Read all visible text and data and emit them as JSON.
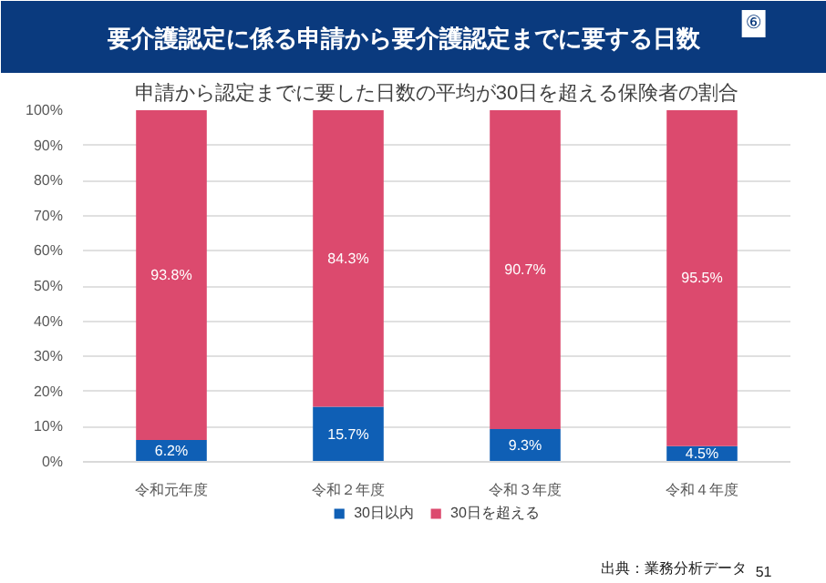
{
  "chart_data": {
    "type": "bar",
    "stacked": true,
    "title": "要介護認定に係る申請から要介護認定までに要する日数",
    "subtitle": "申請から認定までに要した日数の平均が30日を超える保険者の割合",
    "categories": [
      "令和元年度",
      "令和２年度",
      "令和３年度",
      "令和４年度"
    ],
    "series": [
      {
        "name": "30日以内",
        "color": "#0f5fb5",
        "values": [
          6.2,
          15.7,
          9.3,
          4.5
        ],
        "value_labels": [
          "6.2%",
          "15.7%",
          "9.3%",
          "4.5%"
        ]
      },
      {
        "name": "30日を超える",
        "color": "#dc4a6e",
        "values": [
          93.8,
          84.3,
          90.7,
          95.5
        ],
        "value_labels": [
          "93.8%",
          "84.3%",
          "90.7%",
          "95.5%"
        ]
      }
    ],
    "ylim": [
      0,
      100
    ],
    "yticks": [
      {
        "value": 0,
        "label": "0%"
      },
      {
        "value": 10,
        "label": "10%"
      },
      {
        "value": 20,
        "label": "20%"
      },
      {
        "value": 30,
        "label": "30%"
      },
      {
        "value": 40,
        "label": "40%"
      },
      {
        "value": 50,
        "label": "50%"
      },
      {
        "value": 60,
        "label": "60%"
      },
      {
        "value": 70,
        "label": "70%"
      },
      {
        "value": 80,
        "label": "80%"
      },
      {
        "value": 90,
        "label": "90%"
      },
      {
        "value": 100,
        "label": "100%"
      }
    ],
    "grid": "y",
    "legend": "bottom",
    "annotations": [
      "⑥",
      "出典：業務分析データ",
      "51"
    ]
  }
}
